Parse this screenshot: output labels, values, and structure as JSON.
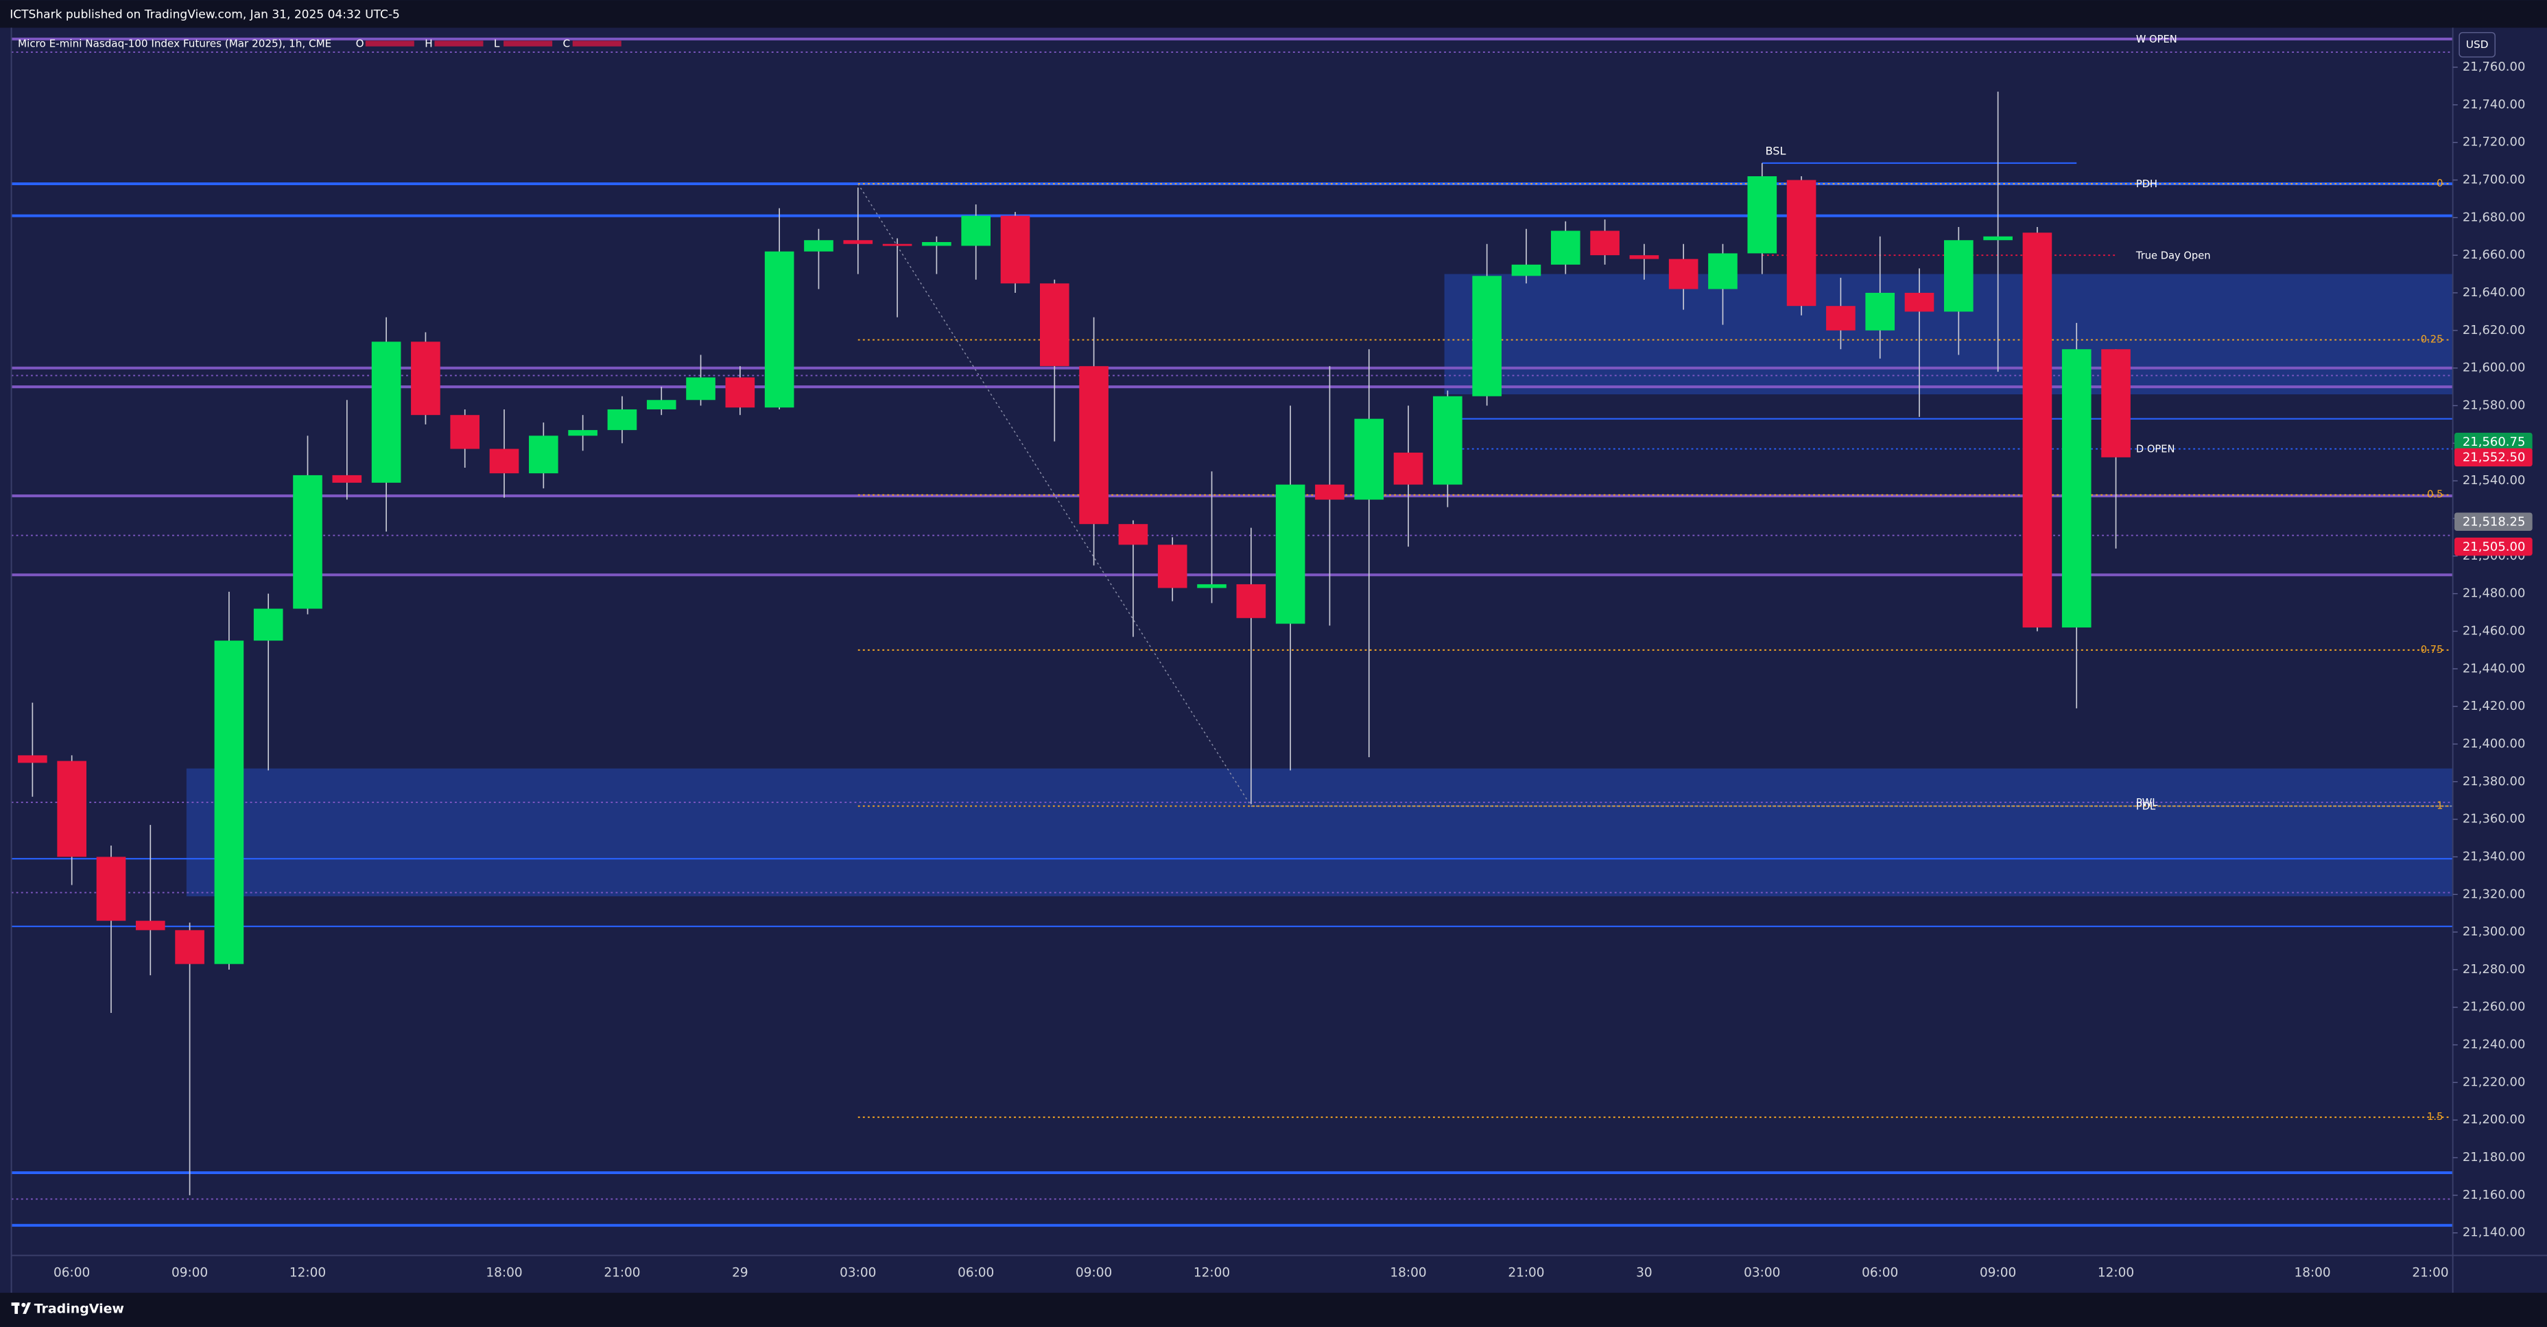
{
  "header": {
    "published": "ICTShark published on TradingView.com, Jan 31, 2025 04:32 UTC-5",
    "brand": "TradingView"
  },
  "chart_data": {
    "type": "candlestick",
    "legend": {
      "symbol": "Micro E-mini Nasdaq-100 Index Futures (Mar 2025), 1h, CME",
      "fields": [
        "O",
        "H",
        "L",
        "C"
      ]
    },
    "currency": "USD",
    "up_color": "#00e05a",
    "down_color": "#e8153f",
    "wick_color": "#c9cbd6",
    "background": "#1b1f46",
    "categories": [
      null,
      "06:00",
      null,
      null,
      "09:00",
      null,
      null,
      "12:00",
      null,
      null,
      null,
      null,
      "18:00",
      null,
      null,
      "21:00",
      null,
      null,
      "29",
      null,
      null,
      "03:00",
      null,
      null,
      "06:00",
      null,
      null,
      "09:00",
      null,
      null,
      "12:00",
      null,
      null,
      null,
      null,
      "18:00",
      null,
      null,
      "21:00",
      null,
      null,
      "30",
      null,
      null,
      "03:00",
      null,
      null,
      "06:00",
      null,
      null,
      "09:00",
      null,
      null,
      "12:00",
      null,
      null,
      null,
      null,
      "18:00",
      null,
      null,
      "21:00"
    ],
    "open": [
      21394,
      21391,
      21340,
      21306,
      21301,
      21283,
      21455,
      21472,
      21543,
      21539,
      21614,
      21575,
      21557,
      21544,
      21564,
      21567,
      21578,
      21583,
      21595,
      21579,
      21662,
      21668,
      21666,
      21665,
      21665,
      21681,
      21645,
      21601,
      21517,
      21506,
      21483,
      21485,
      21464,
      21538,
      21530,
      21555,
      21538,
      21585,
      21649,
      21655,
      21673,
      21660,
      21658,
      21642,
      21661,
      21700,
      21633,
      21620,
      21640,
      21630,
      21668,
      21672,
      21462,
      21610,
      null,
      null,
      null,
      null,
      null,
      null,
      null,
      null
    ],
    "high": [
      21422,
      21394,
      21346,
      21357,
      21305,
      21481,
      21480,
      21564,
      21583,
      21627,
      21619,
      21578,
      21578,
      21571,
      21575,
      21585,
      21590,
      21607,
      21601,
      21685,
      21674,
      21696,
      21669,
      21670,
      21687,
      21683,
      21647,
      21627,
      21519,
      21510,
      21545,
      21515,
      21580,
      21601,
      21610,
      21580,
      21588,
      21666,
      21674,
      21678,
      21679,
      21666,
      21666,
      21666,
      21709,
      21702,
      21648,
      21670,
      21653,
      21675,
      21747,
      21675,
      21624,
      21610,
      null,
      null,
      null,
      null,
      null,
      null,
      null,
      null
    ],
    "low": [
      21372,
      21325,
      21257,
      21277,
      21160,
      21280,
      21386,
      21469,
      21530,
      21513,
      21570,
      21547,
      21531,
      21536,
      21556,
      21560,
      21575,
      21580,
      21575,
      21578,
      21642,
      21650,
      21627,
      21650,
      21647,
      21640,
      21561,
      21495,
      21457,
      21476,
      21475,
      21368,
      21386,
      21463,
      21393,
      21505,
      21526,
      21580,
      21645,
      21650,
      21655,
      21647,
      21631,
      21623,
      21650,
      21628,
      21610,
      21605,
      21574,
      21607,
      21598,
      21460,
      21419,
      21504,
      null,
      null,
      null,
      null,
      null,
      null,
      null,
      null
    ],
    "close": [
      21390,
      21340,
      21306,
      21301,
      21283,
      21455,
      21472,
      21543,
      21539,
      21614,
      21575,
      21557,
      21544,
      21564,
      21567,
      21578,
      21583,
      21595,
      21579,
      21662,
      21668,
      21666,
      21665,
      21667,
      21681,
      21645,
      21601,
      21517,
      21506,
      21483,
      21485,
      21467,
      21538,
      21530,
      21573,
      21538,
      21585,
      21649,
      21655,
      21673,
      21660,
      21658,
      21642,
      21661,
      21702,
      21633,
      21620,
      21640,
      21630,
      21668,
      21670,
      21462,
      21610,
      21552.5,
      null,
      null,
      null,
      null,
      null,
      null,
      null,
      null
    ],
    "ylim": [
      21128,
      21781
    ],
    "yticks": [
      {
        "value": 21140,
        "label": "21,140.00"
      },
      {
        "value": 21160,
        "label": "21,160.00"
      },
      {
        "value": 21180,
        "label": "21,180.00"
      },
      {
        "value": 21200,
        "label": "21,200.00"
      },
      {
        "value": 21220,
        "label": "21,220.00"
      },
      {
        "value": 21240,
        "label": "21,240.00"
      },
      {
        "value": 21260,
        "label": "21,260.00"
      },
      {
        "value": 21280,
        "label": "21,280.00"
      },
      {
        "value": 21300,
        "label": "21,300.00"
      },
      {
        "value": 21320,
        "label": "21,320.00"
      },
      {
        "value": 21340,
        "label": "21,340.00"
      },
      {
        "value": 21360,
        "label": "21,360.00"
      },
      {
        "value": 21380,
        "label": "21,380.00"
      },
      {
        "value": 21400,
        "label": "21,400.00"
      },
      {
        "value": 21420,
        "label": "21,420.00"
      },
      {
        "value": 21440,
        "label": "21,440.00"
      },
      {
        "value": 21460,
        "label": "21,460.00"
      },
      {
        "value": 21480,
        "label": "21,480.00"
      },
      {
        "value": 21500,
        "label": "21,500.00"
      },
      {
        "value": 21520,
        "label": "21,520.00"
      },
      {
        "value": 21540,
        "label": "21,540.00"
      },
      {
        "value": 21560,
        "label": "21,560.00"
      },
      {
        "value": 21580,
        "label": "21,580.00"
      },
      {
        "value": 21600,
        "label": "21,600.00"
      },
      {
        "value": 21620,
        "label": "21,620.00"
      },
      {
        "value": 21640,
        "label": "21,640.00"
      },
      {
        "value": 21660,
        "label": "21,660.00"
      },
      {
        "value": 21680,
        "label": "21,680.00"
      },
      {
        "value": 21700,
        "label": "21,700.00"
      },
      {
        "value": 21720,
        "label": "21,720.00"
      },
      {
        "value": 21740,
        "label": "21,740.00"
      },
      {
        "value": 21760,
        "label": "21,760.00"
      }
    ],
    "grid": false,
    "zones": [
      {
        "top": 21387,
        "bottom": 21319,
        "start_bar": 4,
        "color": "#2962ff"
      },
      {
        "top": 21650,
        "bottom": 21586,
        "start_bar": 36,
        "color": "#2962ff"
      }
    ],
    "levels": [
      {
        "value": 21775,
        "color": "#7e57c2",
        "style": "thick",
        "label": "W OPEN"
      },
      {
        "value": 21768,
        "color": "#7e57c2",
        "style": "dotted"
      },
      {
        "value": 21698,
        "color": "#2962ff",
        "style": "thick",
        "label": "PDH"
      },
      {
        "value": 21681,
        "color": "#2962ff",
        "style": "thick"
      },
      {
        "value": 21600,
        "color": "#7e57c2",
        "style": "thick"
      },
      {
        "value": 21596,
        "color": "#7e57c2",
        "style": "dotted"
      },
      {
        "value": 21590,
        "color": "#7e57c2",
        "style": "thick"
      },
      {
        "value": 21532,
        "color": "#7e57c2",
        "style": "thick"
      },
      {
        "value": 21511,
        "color": "#7e57c2",
        "style": "dotted"
      },
      {
        "value": 21490,
        "color": "#7e57c2",
        "style": "thick"
      },
      {
        "value": 21369,
        "color": "#7e57c2",
        "style": "dotted",
        "label": "PWL"
      },
      {
        "value": 21367,
        "color": "#9598a1",
        "style": "dotted",
        "start_bar": 31,
        "label": "PDL"
      },
      {
        "value": 21339,
        "color": "#2962ff",
        "style": "thin"
      },
      {
        "value": 21321,
        "color": "#7e57c2",
        "style": "dotted"
      },
      {
        "value": 21303,
        "color": "#2962ff",
        "style": "thin"
      },
      {
        "value": 21172,
        "color": "#2962ff",
        "style": "thick"
      },
      {
        "value": 21158,
        "color": "#7e57c2",
        "style": "dotted"
      },
      {
        "value": 21144,
        "color": "#2962ff",
        "style": "thick"
      },
      {
        "value": 21573,
        "color": "#2962ff",
        "style": "thin",
        "start_bar": 36
      },
      {
        "value": 21557,
        "color": "#2962ff",
        "style": "dotted",
        "start_bar": 36,
        "label": "D OPEN"
      },
      {
        "value": 21660,
        "color": "#e8153f",
        "style": "dotted",
        "start_bar": 44,
        "end_bar": 53,
        "label": "True Day Open"
      },
      {
        "value": 21709,
        "color": "#2962ff",
        "style": "thin",
        "start_bar": 44,
        "end_bar": 52,
        "label": "BSL",
        "label_side": "left"
      }
    ],
    "fib": {
      "color": "#f5a623",
      "start_bar": 21,
      "anchors": [
        21,
        31
      ],
      "levels": [
        {
          "ratio": "0",
          "price": 21698
        },
        {
          "ratio": "0.25",
          "price": 21615
        },
        {
          "ratio": "0.5",
          "price": 21532.5
        },
        {
          "ratio": "0.75",
          "price": 21450
        },
        {
          "ratio": "1",
          "price": 21367
        },
        {
          "ratio": "1.5",
          "price": 21201.5
        }
      ]
    },
    "price_tags": [
      {
        "value": 21560.75,
        "label": "21,560.75",
        "color": "#089950"
      },
      {
        "value": 21552.5,
        "label": "21,552.50",
        "color": "#e8153f"
      },
      {
        "value": 21518.25,
        "label": "21,518.25",
        "color": "#787b86"
      },
      {
        "value": 21505,
        "label": "21,505.00",
        "color": "#e8153f"
      }
    ]
  }
}
